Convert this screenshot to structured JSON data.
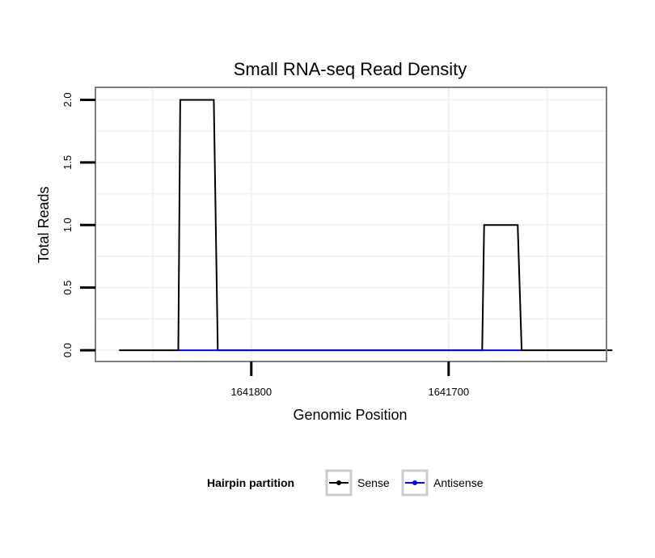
{
  "chart_data": {
    "type": "line",
    "title": "Small RNA-seq Read Density",
    "xlabel": "Genomic Position",
    "ylabel": "Total Reads",
    "x_reversed": true,
    "xlim": [
      1641879,
      1641620
    ],
    "ylim": [
      -0.09,
      2.1
    ],
    "x_ticks": [
      1641800,
      1641700
    ],
    "x_tick_labels": [
      "1641800",
      "1641700"
    ],
    "y_ticks": [
      0,
      0.5,
      1,
      1.5,
      2
    ],
    "y_tick_labels": [
      "0.0",
      "0.5",
      "1.0",
      "1.5",
      "2.0"
    ],
    "grid": true,
    "legend": {
      "title": "Hairpin partition",
      "position": "bottom"
    },
    "series": [
      {
        "name": "Sense",
        "color": "#000000",
        "points": [
          [
            1641867,
            0
          ],
          [
            1641837,
            0
          ],
          [
            1641836,
            2
          ],
          [
            1641819,
            2
          ],
          [
            1641817,
            0
          ],
          [
            1641683,
            0
          ],
          [
            1641682,
            1
          ],
          [
            1641665,
            1
          ],
          [
            1641663,
            0
          ],
          [
            1641617,
            0
          ]
        ]
      },
      {
        "name": "Antisense",
        "color": "#0000ff",
        "points": [
          [
            1641837,
            0
          ],
          [
            1641817,
            0
          ],
          [
            1641683,
            0
          ],
          [
            1641663,
            0
          ]
        ]
      }
    ]
  }
}
